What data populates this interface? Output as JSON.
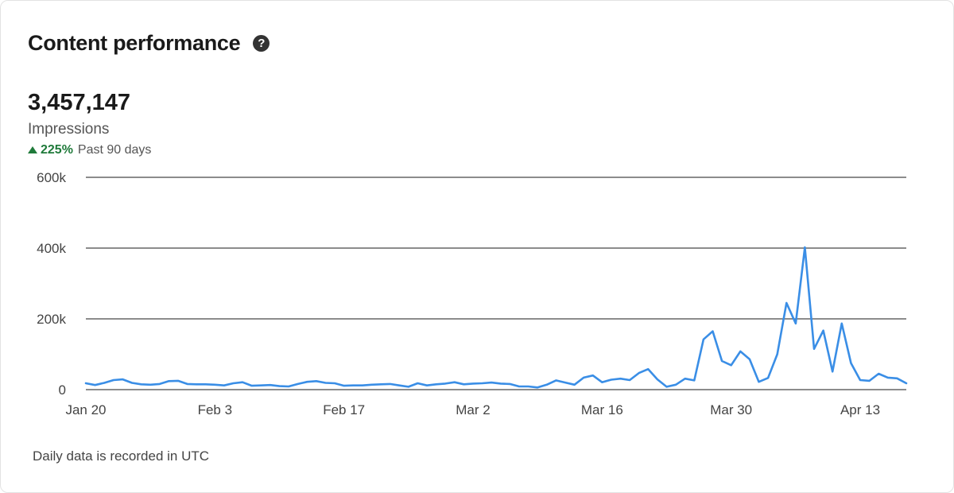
{
  "card": {
    "title": "Content performance",
    "help_icon": "question-circle-icon"
  },
  "metric": {
    "value": "3,457,147",
    "label": "Impressions",
    "change": "225%",
    "change_direction": "up",
    "period": "Past 90 days"
  },
  "footnote": "Daily data is recorded in UTC",
  "colors": {
    "line": "#3a8ee6",
    "positive": "#1f7a3a",
    "grid": "#1a1a1a"
  },
  "chart_data": {
    "type": "line",
    "x_start": "Jan 20",
    "x_tick_labels": [
      "Jan 20",
      "Feb 3",
      "Feb 17",
      "Mar 2",
      "Mar 16",
      "Mar 30",
      "Apr 13"
    ],
    "x_tick_days": [
      0,
      14,
      28,
      42,
      56,
      70,
      84
    ],
    "y_ticks": [
      0,
      200000,
      400000,
      600000
    ],
    "y_tick_labels": [
      "0",
      "200k",
      "400k",
      "600k"
    ],
    "ylim": [
      0,
      600000
    ],
    "grid": true,
    "legend": "none",
    "series": [
      {
        "values": [
          18000,
          13000,
          19000,
          27000,
          29000,
          19000,
          15000,
          14000,
          16000,
          24000,
          25000,
          16000,
          15000,
          15000,
          14000,
          12000,
          18000,
          21000,
          11000,
          12000,
          13000,
          10000,
          9000,
          16000,
          22000,
          24000,
          19000,
          18000,
          11000,
          12000,
          12000,
          14000,
          15000,
          16000,
          12000,
          8000,
          18000,
          12000,
          15000,
          17000,
          21000,
          15000,
          17000,
          18000,
          20000,
          17000,
          16000,
          9000,
          9000,
          6000,
          14000,
          26000,
          20000,
          14000,
          34000,
          40000,
          21000,
          28000,
          31000,
          27000,
          47000,
          58000,
          29000,
          8000,
          14000,
          31000,
          26000,
          142000,
          165000,
          81000,
          69000,
          108000,
          86000,
          22000,
          33000,
          100000,
          245000,
          187000,
          402000,
          115000,
          167000,
          51000,
          187000,
          75000,
          27000,
          25000,
          45000,
          34000,
          32000,
          18000
        ]
      }
    ]
  }
}
